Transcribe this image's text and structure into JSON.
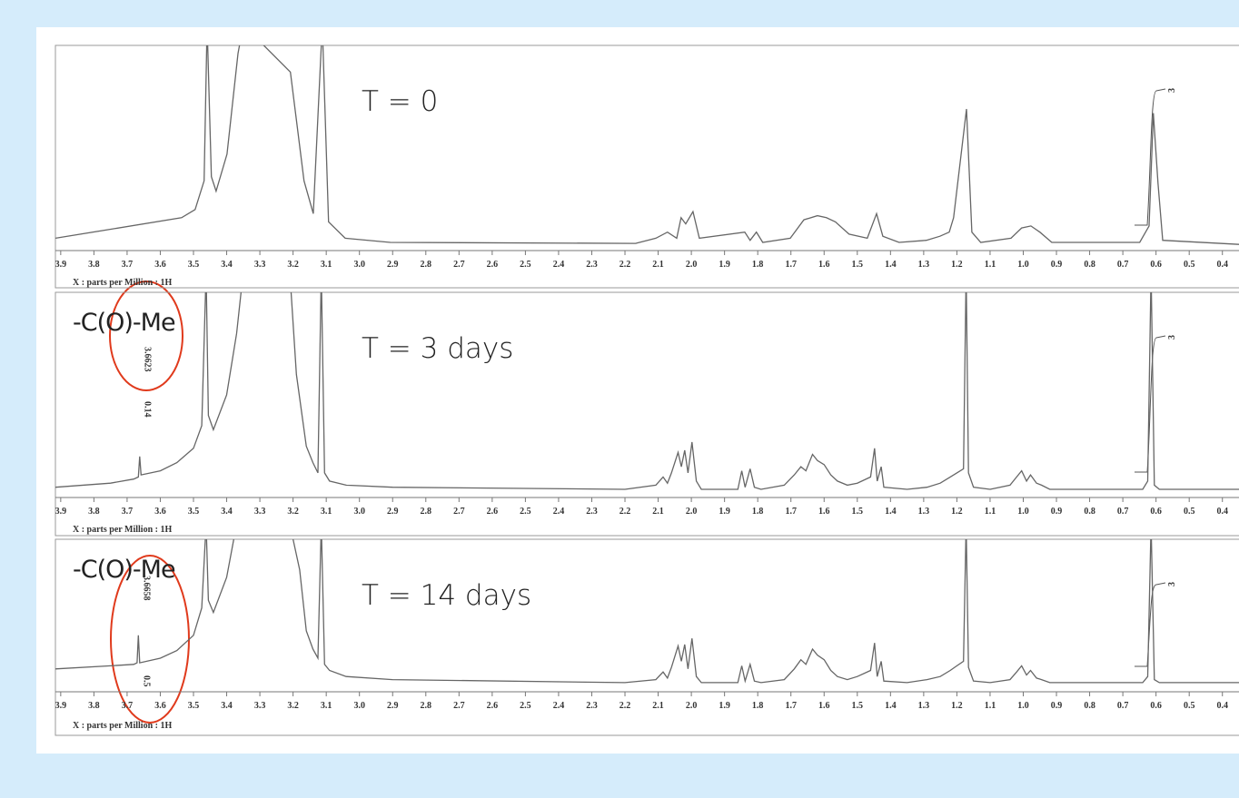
{
  "chart_data": [
    {
      "type": "line",
      "title": "T = 0",
      "x_label": "X : parts per Million : 1H",
      "integral": 3,
      "color": "#666666",
      "xlim": [
        3.916,
        0.35
      ],
      "ylim": [
        0,
        100
      ],
      "xticks": [
        3.9,
        3.8,
        3.7,
        3.6,
        3.5,
        3.4,
        3.3,
        3.2,
        3.1,
        {
          "value": 3,
          "label": "3.0"
        },
        2.9,
        2.8,
        2.7,
        2.6,
        2.5,
        2.4,
        2.3,
        2.2,
        2.1,
        {
          "value": 2,
          "label": "2.0"
        },
        1.9,
        1.8,
        1.7,
        1.6,
        1.5,
        1.4,
        1.3,
        1.2,
        1.1,
        {
          "value": 1,
          "label": "1.0"
        },
        0.9,
        0.8,
        0.7,
        0.6,
        0.5,
        0.4
      ],
      "x": [
        3.916,
        3.536,
        3.495,
        3.468,
        3.459,
        3.446,
        3.432,
        3.399,
        3.366,
        3.35,
        3.208,
        3.167,
        3.139,
        3.112,
        3.093,
        3.043,
        2.907,
        2.168,
        2.107,
        2.072,
        2.044,
        2.031,
        2.017,
        1.995,
        1.976,
        1.839,
        1.823,
        1.804,
        1.785,
        1.702,
        1.661,
        1.62,
        1.593,
        1.566,
        1.525,
        1.47,
        1.442,
        1.423,
        1.374,
        1.292,
        1.251,
        1.223,
        1.21,
        1.171,
        1.155,
        1.128,
        1.037,
        1.005,
        0.977,
        0.95,
        0.914,
        0.649,
        0.621,
        0.608,
        0.594,
        0.58,
        0.35
      ],
      "values": [
        6,
        16,
        20,
        34,
        110,
        36,
        29,
        47,
        96,
        110,
        87,
        34,
        18,
        110,
        14,
        6,
        4,
        3.5,
        6,
        9,
        6,
        16,
        13,
        19,
        6,
        9,
        5,
        9,
        4,
        6,
        15,
        17,
        16,
        14,
        8,
        6,
        18,
        7,
        4,
        5,
        7,
        9,
        16,
        69,
        9,
        4,
        6,
        11,
        12,
        9,
        4,
        4,
        12,
        67,
        33,
        5,
        3
      ]
    },
    {
      "type": "line",
      "title": "T = 3 days",
      "x_label": "X : parts per Million : 1H",
      "integral": 3,
      "group_label": "-C(O)-Me",
      "peak_label": 3.6623,
      "peak_integral": 0.14,
      "color": "#666666",
      "xlim": [
        3.916,
        0.35
      ],
      "ylim": [
        0,
        100
      ],
      "xticks": [
        3.9,
        3.8,
        3.7,
        3.6,
        3.5,
        3.4,
        3.3,
        3.2,
        3.1,
        {
          "value": 3,
          "label": "3.0"
        },
        2.9,
        2.8,
        2.7,
        2.6,
        2.5,
        2.4,
        2.3,
        2.2,
        2.1,
        {
          "value": 2,
          "label": "2.0"
        },
        1.9,
        1.8,
        1.7,
        1.6,
        1.5,
        1.4,
        1.3,
        1.2,
        1.1,
        {
          "value": 1,
          "label": "1.0"
        },
        0.9,
        0.8,
        0.7,
        0.6,
        0.5,
        0.4
      ],
      "x": [
        3.916,
        3.75,
        3.68,
        3.666,
        3.662,
        3.658,
        3.6,
        3.55,
        3.5,
        3.475,
        3.462,
        3.455,
        3.44,
        3.4,
        3.37,
        3.35,
        3.21,
        3.19,
        3.16,
        3.14,
        3.125,
        3.115,
        3.105,
        3.09,
        3.04,
        2.9,
        2.2,
        2.107,
        2.085,
        2.072,
        2.06,
        2.04,
        2.03,
        2.02,
        2.01,
        1.998,
        1.985,
        1.97,
        1.86,
        1.848,
        1.838,
        1.823,
        1.81,
        1.79,
        1.72,
        1.69,
        1.67,
        1.655,
        1.635,
        1.62,
        1.6,
        1.58,
        1.56,
        1.53,
        1.5,
        1.46,
        1.448,
        1.44,
        1.428,
        1.42,
        1.35,
        1.29,
        1.25,
        1.22,
        1.2,
        1.18,
        1.172,
        1.165,
        1.15,
        1.1,
        1.04,
        1.02,
        1.005,
        0.99,
        0.978,
        0.96,
        0.945,
        0.92,
        0.64,
        0.625,
        0.615,
        0.605,
        0.59,
        0.35
      ],
      "values": [
        5,
        7,
        9,
        10,
        20,
        11,
        13,
        17,
        24,
        35,
        110,
        40,
        33,
        50,
        80,
        110,
        110,
        60,
        25,
        17,
        12,
        110,
        12,
        8,
        6,
        5,
        4,
        6,
        10,
        7,
        12,
        22,
        15,
        23,
        12,
        27,
        8,
        4,
        4,
        13,
        5,
        14,
        5,
        4,
        6,
        11,
        15,
        13,
        21,
        18,
        16,
        11,
        8,
        6,
        7,
        10,
        24,
        8,
        15,
        5,
        4,
        5,
        7,
        10,
        12,
        14,
        110,
        12,
        5,
        4,
        6,
        10,
        13,
        8,
        11,
        7,
        6,
        4,
        4,
        8,
        110,
        6,
        4,
        4
      ]
    },
    {
      "type": "line",
      "title": "T = 14 days",
      "x_label": "X : parts per Million : 1H",
      "integral": 3,
      "group_label": "-C(O)-Me",
      "peak_label": 3.6658,
      "peak_integral": 0.5,
      "color": "#666666",
      "xlim": [
        3.916,
        0.35
      ],
      "ylim": [
        0,
        100
      ],
      "xticks": [
        3.9,
        3.8,
        3.7,
        3.6,
        3.5,
        3.4,
        3.3,
        3.2,
        3.1,
        {
          "value": 3,
          "label": "3.0"
        },
        2.9,
        2.8,
        2.7,
        2.6,
        2.5,
        2.4,
        2.3,
        2.2,
        2.1,
        {
          "value": 2,
          "label": "2.0"
        },
        1.9,
        1.8,
        1.7,
        1.6,
        1.5,
        1.4,
        1.3,
        1.2,
        1.1,
        {
          "value": 1,
          "label": "1.0"
        },
        0.9,
        0.8,
        0.7,
        0.6,
        0.5,
        0.4
      ],
      "x": [
        3.916,
        3.75,
        3.68,
        3.67,
        3.666,
        3.662,
        3.6,
        3.55,
        3.5,
        3.475,
        3.462,
        3.455,
        3.44,
        3.4,
        3.37,
        3.21,
        3.18,
        3.16,
        3.14,
        3.125,
        3.115,
        3.105,
        3.09,
        3.04,
        2.9,
        2.2,
        2.107,
        2.085,
        2.072,
        2.06,
        2.04,
        2.03,
        2.02,
        2.01,
        1.998,
        1.985,
        1.97,
        1.86,
        1.848,
        1.838,
        1.823,
        1.81,
        1.79,
        1.72,
        1.69,
        1.67,
        1.655,
        1.635,
        1.62,
        1.6,
        1.58,
        1.56,
        1.53,
        1.5,
        1.46,
        1.448,
        1.44,
        1.428,
        1.42,
        1.35,
        1.29,
        1.25,
        1.22,
        1.2,
        1.18,
        1.172,
        1.165,
        1.15,
        1.1,
        1.04,
        1.02,
        1.005,
        0.99,
        0.978,
        0.96,
        0.945,
        0.92,
        0.64,
        0.625,
        0.615,
        0.605,
        0.59,
        0.35
      ],
      "values": [
        15,
        17,
        18,
        19,
        37,
        19,
        22,
        27,
        37,
        55,
        110,
        60,
        52,
        75,
        110,
        110,
        80,
        40,
        28,
        22,
        110,
        18,
        14,
        10,
        8,
        6,
        8,
        13,
        9,
        16,
        30,
        20,
        31,
        15,
        35,
        10,
        6,
        6,
        17,
        7,
        18,
        7,
        6,
        8,
        15,
        21,
        18,
        28,
        24,
        21,
        14,
        10,
        8,
        10,
        14,
        32,
        10,
        20,
        7,
        6,
        8,
        10,
        14,
        17,
        20,
        110,
        16,
        7,
        6,
        8,
        13,
        17,
        11,
        14,
        9,
        8,
        6,
        6,
        10,
        110,
        8,
        6,
        6
      ]
    }
  ]
}
